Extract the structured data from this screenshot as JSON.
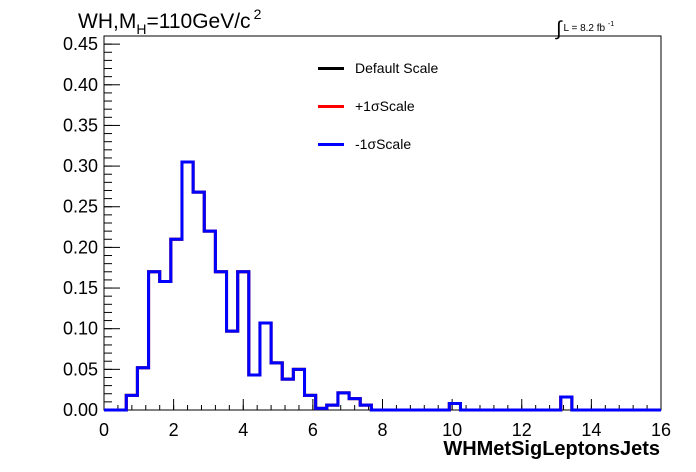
{
  "title": {
    "prefix": "WH,M",
    "sub": "H",
    "value": "=110GeV/c",
    "sup": "2"
  },
  "lumi": {
    "integral": "∫",
    "text": "L = 8.2 fb",
    "sup": "-1"
  },
  "chart_data": {
    "type": "line",
    "xlabel": "WHMetSigLeptonsJets",
    "ylabel": "",
    "xlim": [
      0,
      16
    ],
    "ylim": [
      0,
      0.46
    ],
    "x_ticks": [
      "0",
      "2",
      "4",
      "6",
      "8",
      "10",
      "12",
      "14",
      "16"
    ],
    "y_ticks": [
      "0.00",
      "0.05",
      "0.10",
      "0.15",
      "0.20",
      "0.25",
      "0.30",
      "0.35",
      "0.40",
      "0.45"
    ],
    "bin_edges": [
      0,
      0.32,
      0.64,
      0.96,
      1.28,
      1.6,
      1.92,
      2.24,
      2.56,
      2.88,
      3.2,
      3.52,
      3.84,
      4.16,
      4.48,
      4.8,
      5.12,
      5.44,
      5.76,
      6.08,
      6.4,
      6.72,
      7.04,
      7.36,
      7.68,
      8.0,
      8.32,
      8.64,
      8.96,
      9.28,
      9.6,
      9.92,
      10.24,
      10.56,
      10.88,
      11.2,
      11.52,
      11.84,
      12.16,
      12.48,
      12.8,
      13.12,
      13.44,
      13.76,
      14.08,
      14.4,
      14.72,
      15.04,
      15.36,
      15.68,
      16.0
    ],
    "series": [
      {
        "name": "Default Scale",
        "color": "#000000",
        "values": [
          0,
          0,
          0.018,
          0.052,
          0.17,
          0.158,
          0.21,
          0.305,
          0.268,
          0.22,
          0.17,
          0.097,
          0.17,
          0.043,
          0.107,
          0.058,
          0.038,
          0.05,
          0.018,
          0.002,
          0.006,
          0.021,
          0.014,
          0.006,
          0,
          0,
          0,
          0,
          0,
          0,
          0,
          0.008,
          0,
          0,
          0,
          0,
          0,
          0,
          0,
          0,
          0,
          0.016,
          0,
          0,
          0,
          0,
          0,
          0,
          0,
          0
        ]
      },
      {
        "name": "+1σScale",
        "color": "#ff0000",
        "values": [
          0,
          0,
          0.018,
          0.052,
          0.17,
          0.158,
          0.21,
          0.305,
          0.268,
          0.22,
          0.17,
          0.097,
          0.17,
          0.043,
          0.107,
          0.058,
          0.038,
          0.05,
          0.018,
          0.002,
          0.006,
          0.021,
          0.014,
          0.006,
          0,
          0,
          0,
          0,
          0,
          0,
          0,
          0.008,
          0,
          0,
          0,
          0,
          0,
          0,
          0,
          0,
          0,
          0.016,
          0,
          0,
          0,
          0,
          0,
          0,
          0,
          0
        ]
      },
      {
        "name": "-1σScale",
        "color": "#0000ff",
        "values": [
          0,
          0,
          0.018,
          0.052,
          0.17,
          0.158,
          0.21,
          0.305,
          0.268,
          0.22,
          0.17,
          0.097,
          0.17,
          0.043,
          0.107,
          0.058,
          0.038,
          0.05,
          0.018,
          0.002,
          0.006,
          0.021,
          0.014,
          0.006,
          0,
          0,
          0,
          0,
          0,
          0,
          0,
          0.008,
          0,
          0,
          0,
          0,
          0,
          0,
          0,
          0,
          0,
          0.016,
          0,
          0,
          0,
          0,
          0,
          0,
          0,
          0
        ]
      }
    ]
  }
}
